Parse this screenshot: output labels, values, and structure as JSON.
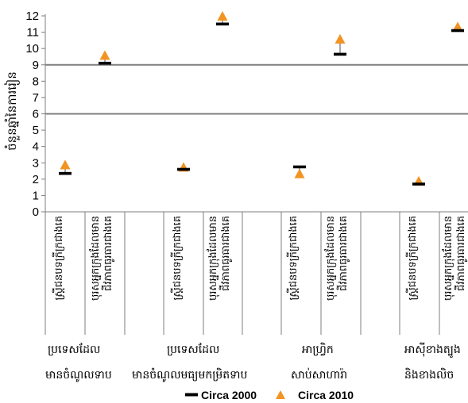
{
  "chart_data": {
    "type": "scatter",
    "ylabel": "ចំនួនឆ្នាំនៃការរៀន",
    "ylim": [
      0,
      12
    ],
    "yticks": [
      0,
      1,
      2,
      3,
      4,
      5,
      6,
      7,
      8,
      9,
      10,
      11,
      12
    ],
    "reference_lines": [
      6,
      9
    ],
    "categories": [
      "ស្ត្រីជនបទក្រីក្រជាងគេ",
      "បុរសអ្នកក្រុងដែលមានជីវភាពធូរធារជាងគេ",
      "ស្ត្រីជនបទក្រីក្រជាងគេ",
      "បុរសអ្នកក្រុងដែលមានជីវភាពធូរធារជាងគេ",
      "ស្ត្រីជនបទក្រីក្រជាងគេ",
      "បុរសអ្នកក្រុងដែលមានជីវភាពធូរធារជាងគេ",
      "ស្ត្រីជនបទក្រីក្រជាងគេ",
      "បុរសអ្នកក្រុងដែលមានជីវភាពធូរធារជាងគេ"
    ],
    "groups": [
      {
        "name": "ប្រទេសដែលមានចំណូលទាប"
      },
      {
        "name": "ប្រទេសដែលមានចំណូលមធ្យមកម្រិតទាប"
      },
      {
        "name": "អាហ្វ្រិកសាប់សាហារ៉ា"
      },
      {
        "name": "អាស៊ីខាងត្បូងនិងខាងលិច"
      }
    ],
    "series": [
      {
        "name": "Circa 2000",
        "marker": "dash",
        "color": "#000000",
        "values": [
          2.35,
          9.1,
          2.6,
          11.5,
          2.75,
          9.65,
          1.7,
          11.1
        ]
      },
      {
        "name": "Circa 2010",
        "marker": "triangle",
        "color": "#f39321",
        "values": [
          2.85,
          9.55,
          2.7,
          11.95,
          2.3,
          10.55,
          1.85,
          11.3
        ]
      }
    ]
  }
}
